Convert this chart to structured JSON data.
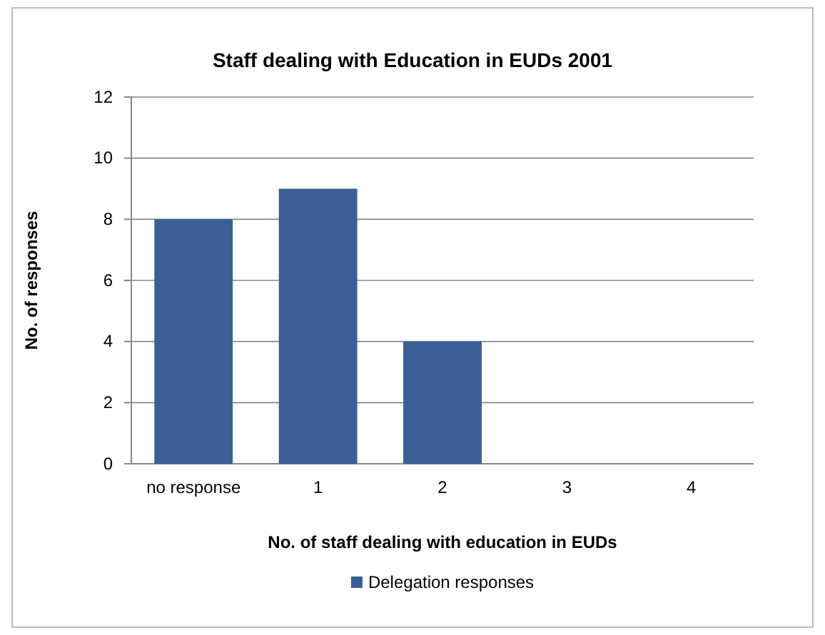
{
  "chart_data": {
    "type": "bar",
    "title": "Staff dealing with Education in EUDs 2001",
    "xlabel": "No. of staff dealing with education in EUDs",
    "ylabel": "No. of responses",
    "categories": [
      "no response",
      "1",
      "2",
      "3",
      "4"
    ],
    "series": [
      {
        "name": "Delegation responses",
        "color": "#3a5f96",
        "values": [
          8,
          9,
          4,
          0,
          0
        ]
      }
    ],
    "ylim": [
      0,
      12
    ],
    "yticks": [
      0,
      2,
      4,
      6,
      8,
      10,
      12
    ],
    "grid": "y",
    "legend": "bottom"
  }
}
